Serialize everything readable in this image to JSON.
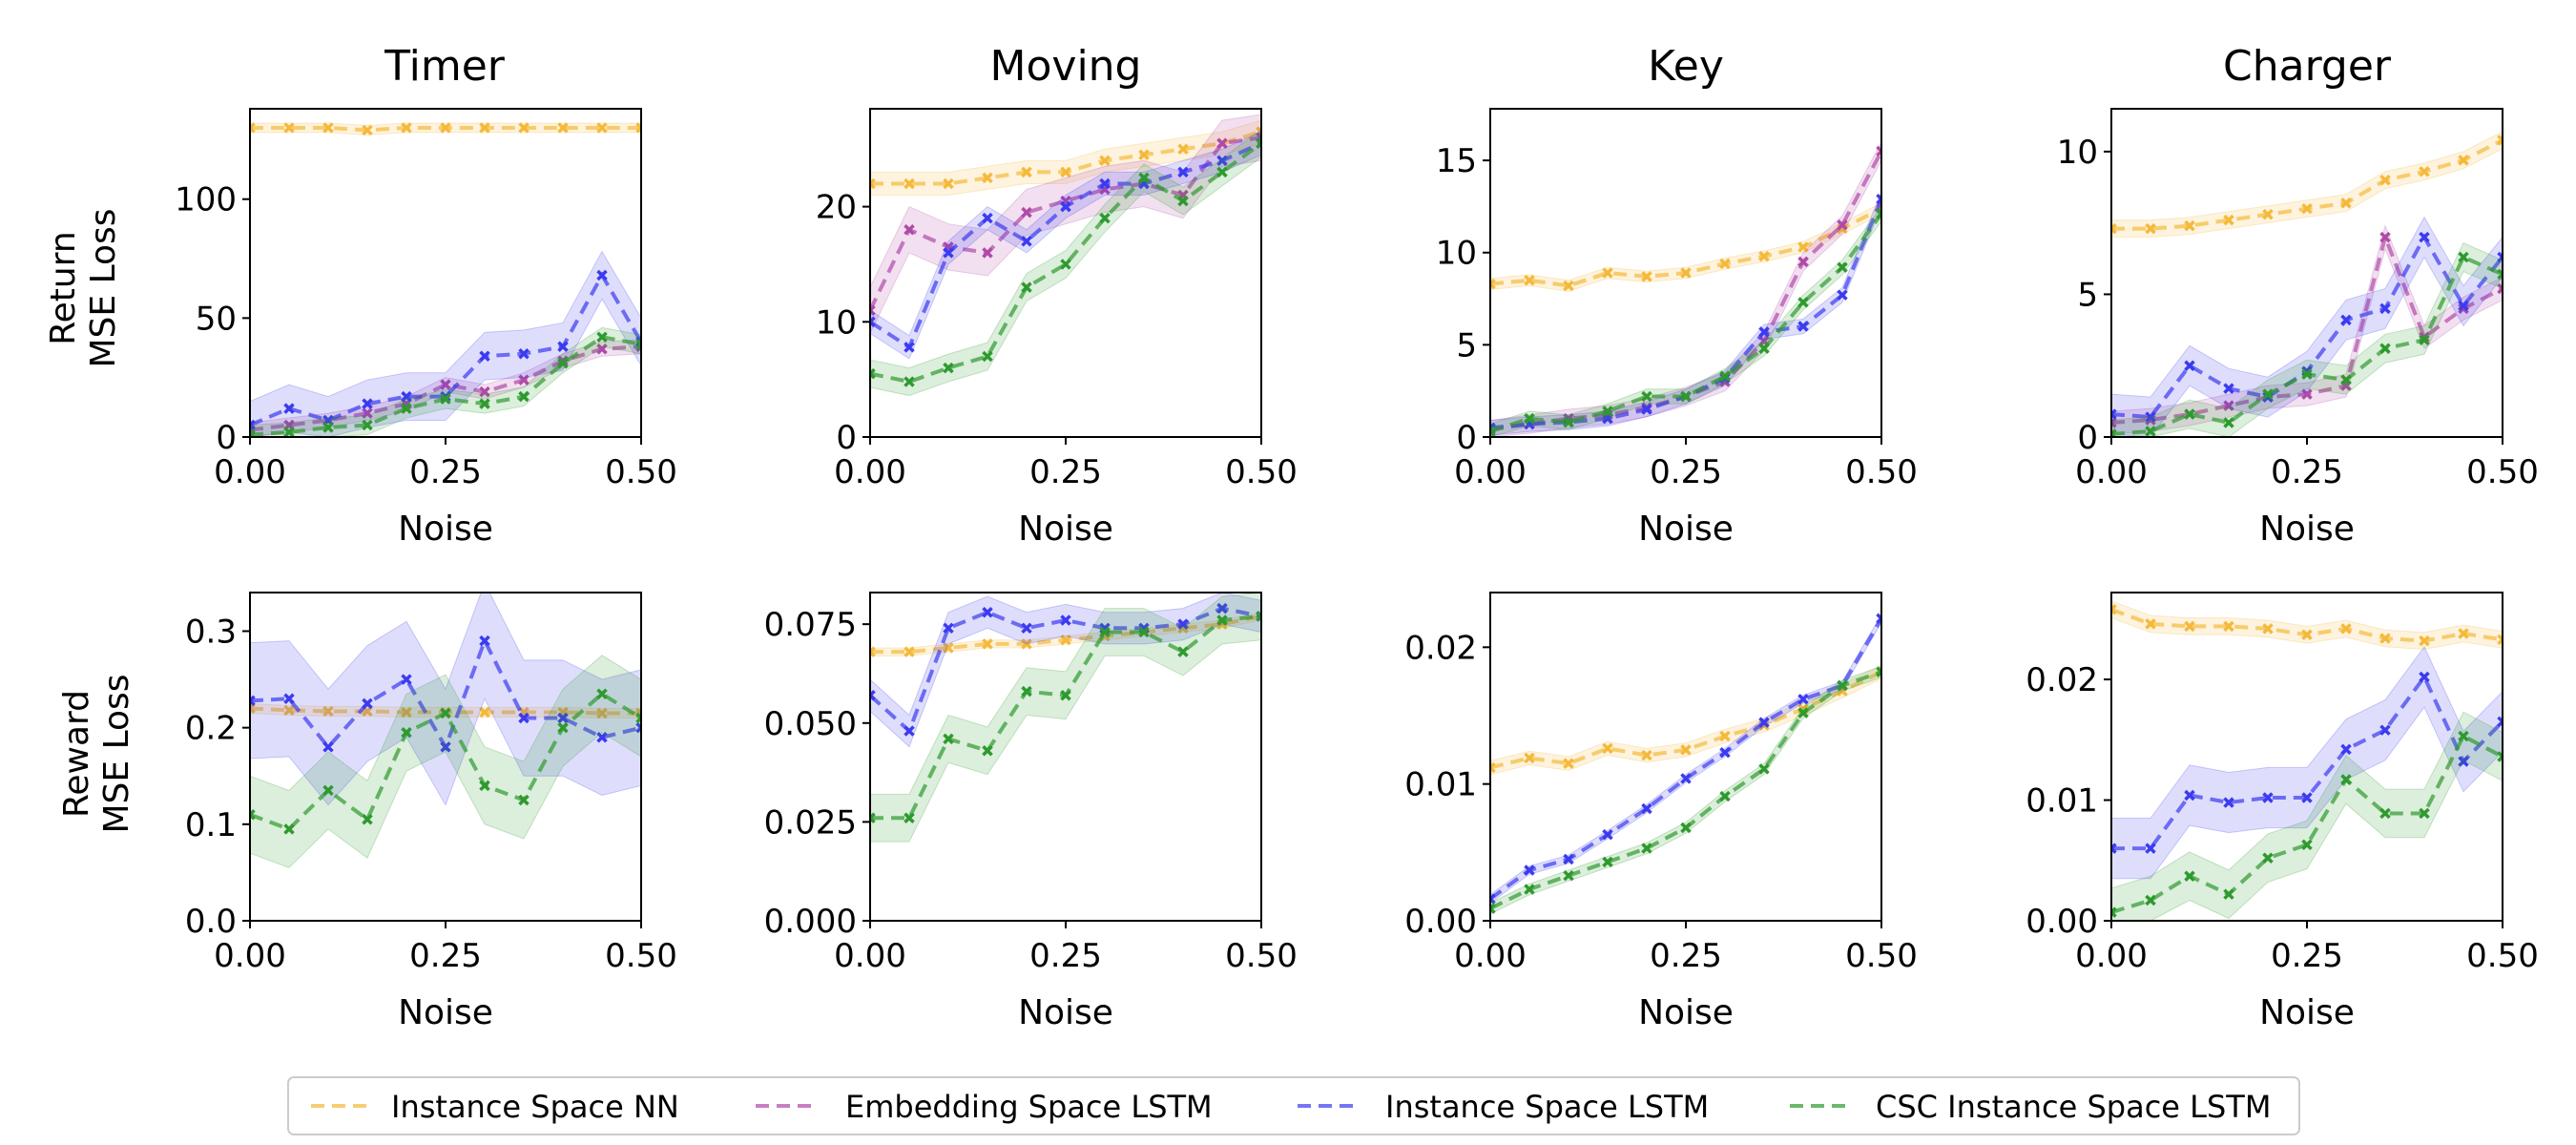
{
  "legend": {
    "placement": "bottom-center",
    "entries": [
      {
        "label": "Instance Space NN",
        "color": "#f5b93a"
      },
      {
        "label": "Embedding Space LSTM",
        "color": "#b04aa8"
      },
      {
        "label": "Instance Space LSTM",
        "color": "#3b3bf0"
      },
      {
        "label": "CSC Instance Space LSTM",
        "color": "#2e9a2e"
      }
    ]
  },
  "row_labels": [
    {
      "line1": "Return",
      "line2": "MSE Loss"
    },
    {
      "line1": "Reward",
      "line2": "MSE Loss"
    }
  ],
  "column_titles": [
    "Timer",
    "Moving",
    "Key",
    "Charger"
  ],
  "chart_data": [
    {
      "type": "line",
      "title": "Timer",
      "xlabel": "Noise",
      "ylabel": "Return MSE Loss",
      "xlim": [
        0,
        0.5
      ],
      "ylim": [
        0,
        138
      ],
      "xticks": [
        "0.00",
        "0.25",
        "0.50"
      ],
      "yticks": [
        0,
        50,
        100
      ],
      "ytick_labels": [
        "0",
        "50",
        "100"
      ],
      "x": [
        0,
        0.05,
        0.1,
        0.15,
        0.2,
        0.25,
        0.3,
        0.35,
        0.4,
        0.45,
        0.5
      ],
      "series": [
        {
          "values": [
            130,
            130,
            130,
            129,
            130,
            130,
            130,
            130,
            130,
            130,
            130
          ],
          "band": 2
        },
        {
          "values": [
            3,
            5,
            7,
            10,
            14,
            22,
            19,
            24,
            32,
            37,
            38
          ],
          "band": 3
        },
        {
          "values": [
            5,
            12,
            7,
            14,
            17,
            17,
            34,
            35,
            38,
            68,
            40
          ],
          "band": 10
        },
        {
          "values": [
            1,
            2,
            4,
            5,
            12,
            16,
            14,
            17,
            31,
            42,
            39
          ],
          "band": 4
        }
      ]
    },
    {
      "type": "line",
      "title": "Moving",
      "xlabel": "Noise",
      "ylabel": "",
      "xlim": [
        0,
        0.5
      ],
      "ylim": [
        0,
        28.5
      ],
      "xticks": [
        "0.00",
        "0.25",
        "0.50"
      ],
      "yticks": [
        0,
        10,
        20
      ],
      "ytick_labels": [
        "0",
        "10",
        "20"
      ],
      "x": [
        0,
        0.05,
        0.1,
        0.15,
        0.2,
        0.25,
        0.3,
        0.35,
        0.4,
        0.45,
        0.5
      ],
      "series": [
        {
          "values": [
            22,
            22,
            22,
            22.5,
            23,
            23,
            24,
            24.5,
            25,
            25.5,
            26.5
          ],
          "band": 1
        },
        {
          "values": [
            11,
            18,
            16.5,
            16,
            19.5,
            20.5,
            21.5,
            22,
            21,
            25.5,
            26
          ],
          "band": 2
        },
        {
          "values": [
            10,
            7.8,
            16,
            19,
            17,
            20,
            22,
            22,
            23,
            24,
            25.5
          ],
          "band": 1
        },
        {
          "values": [
            5.5,
            4.8,
            6,
            7,
            13,
            15,
            19,
            22.5,
            20.5,
            23,
            25.5
          ],
          "band": 1.2
        }
      ]
    },
    {
      "type": "line",
      "title": "Key",
      "xlabel": "Noise",
      "ylabel": "",
      "xlim": [
        0,
        0.5
      ],
      "ylim": [
        0,
        17.8
      ],
      "xticks": [
        "0.00",
        "0.25",
        "0.50"
      ],
      "yticks": [
        0,
        5,
        10,
        15
      ],
      "ytick_labels": [
        "0",
        "5",
        "10",
        "15"
      ],
      "x": [
        0,
        0.05,
        0.1,
        0.15,
        0.2,
        0.25,
        0.3,
        0.35,
        0.4,
        0.45,
        0.5
      ],
      "series": [
        {
          "values": [
            8.3,
            8.5,
            8.2,
            8.9,
            8.7,
            8.9,
            9.4,
            9.8,
            10.3,
            11.3,
            12.4
          ],
          "band": 0.3
        },
        {
          "values": [
            0.4,
            0.7,
            1.0,
            1.2,
            1.6,
            2.2,
            3.0,
            5.2,
            9.5,
            11.5,
            15.5
          ],
          "band": 0.5
        },
        {
          "values": [
            0.5,
            0.7,
            0.8,
            1.0,
            1.5,
            2.2,
            3.2,
            5.7,
            6.0,
            7.7,
            12.9
          ],
          "band": 0.4
        },
        {
          "values": [
            0.3,
            1.0,
            0.8,
            1.4,
            2.2,
            2.2,
            3.3,
            4.8,
            7.3,
            9.2,
            12.1
          ],
          "band": 0.4
        }
      ]
    },
    {
      "type": "line",
      "title": "Charger",
      "xlabel": "Noise",
      "ylabel": "",
      "xlim": [
        0,
        0.5
      ],
      "ylim": [
        0,
        11.5
      ],
      "xticks": [
        "0.00",
        "0.25",
        "0.50"
      ],
      "yticks": [
        0,
        5,
        10
      ],
      "ytick_labels": [
        "0",
        "5",
        "10"
      ],
      "x": [
        0,
        0.05,
        0.1,
        0.15,
        0.2,
        0.25,
        0.3,
        0.35,
        0.4,
        0.45,
        0.5
      ],
      "series": [
        {
          "values": [
            7.3,
            7.3,
            7.4,
            7.6,
            7.8,
            8.0,
            8.2,
            9.0,
            9.3,
            9.7,
            10.4
          ],
          "band": 0.3
        },
        {
          "values": [
            0.5,
            0.6,
            0.8,
            1.1,
            1.4,
            1.5,
            1.8,
            7.0,
            3.5,
            4.5,
            5.2
          ],
          "band": 0.4
        },
        {
          "values": [
            0.8,
            0.7,
            2.5,
            1.7,
            1.4,
            2.3,
            4.1,
            4.5,
            7.0,
            4.6,
            6.3
          ],
          "band": 0.7
        },
        {
          "values": [
            0.1,
            0.2,
            0.8,
            0.5,
            1.5,
            2.2,
            2.0,
            3.1,
            3.4,
            6.3,
            5.7
          ],
          "band": 0.5
        }
      ]
    },
    {
      "type": "line",
      "title": "",
      "xlabel": "Noise",
      "ylabel": "Reward MSE Loss",
      "xlim": [
        0,
        0.5
      ],
      "ylim": [
        0,
        0.34
      ],
      "xticks": [
        "0.00",
        "0.25",
        "0.50"
      ],
      "yticks": [
        0,
        0.1,
        0.2,
        0.3
      ],
      "ytick_labels": [
        "0.0",
        "0.1",
        "0.2",
        "0.3"
      ],
      "x": [
        0,
        0.05,
        0.1,
        0.15,
        0.2,
        0.25,
        0.3,
        0.35,
        0.4,
        0.45,
        0.5
      ],
      "series": [
        {
          "values": [
            0.22,
            0.218,
            0.217,
            0.217,
            0.216,
            0.216,
            0.216,
            0.216,
            0.216,
            0.215,
            0.215
          ],
          "band": 0.005
        },
        null,
        {
          "values": [
            0.228,
            0.23,
            0.18,
            0.225,
            0.25,
            0.18,
            0.29,
            0.21,
            0.21,
            0.19,
            0.2
          ],
          "band": 0.06
        },
        {
          "values": [
            0.11,
            0.095,
            0.135,
            0.105,
            0.195,
            0.215,
            0.14,
            0.125,
            0.2,
            0.235,
            0.21
          ],
          "band": 0.04
        }
      ]
    },
    {
      "type": "line",
      "title": "",
      "xlabel": "Noise",
      "ylabel": "",
      "xlim": [
        0,
        0.5
      ],
      "ylim": [
        0,
        0.083
      ],
      "xticks": [
        "0.00",
        "0.25",
        "0.50"
      ],
      "yticks": [
        0,
        0.025,
        0.05,
        0.075
      ],
      "ytick_labels": [
        "0.000",
        "0.025",
        "0.050",
        "0.075"
      ],
      "x": [
        0,
        0.05,
        0.1,
        0.15,
        0.2,
        0.25,
        0.3,
        0.35,
        0.4,
        0.45,
        0.5
      ],
      "series": [
        {
          "values": [
            0.068,
            0.068,
            0.069,
            0.07,
            0.07,
            0.071,
            0.072,
            0.073,
            0.074,
            0.075,
            0.077
          ],
          "band": 0.001
        },
        null,
        {
          "values": [
            0.057,
            0.048,
            0.074,
            0.078,
            0.074,
            0.076,
            0.074,
            0.074,
            0.075,
            0.079,
            0.077
          ],
          "band": 0.004
        },
        {
          "values": [
            0.026,
            0.026,
            0.046,
            0.043,
            0.058,
            0.057,
            0.073,
            0.073,
            0.068,
            0.076,
            0.077
          ],
          "band": 0.006
        }
      ]
    },
    {
      "type": "line",
      "title": "",
      "xlabel": "Noise",
      "ylabel": "",
      "xlim": [
        0,
        0.5
      ],
      "ylim": [
        0,
        0.024
      ],
      "xticks": [
        "0.00",
        "0.25",
        "0.50"
      ],
      "yticks": [
        0,
        0.01,
        0.02
      ],
      "ytick_labels": [
        "0.00",
        "0.01",
        "0.02"
      ],
      "x": [
        0,
        0.05,
        0.1,
        0.15,
        0.2,
        0.25,
        0.3,
        0.35,
        0.4,
        0.45,
        0.5
      ],
      "series": [
        {
          "values": [
            0.0112,
            0.0119,
            0.0115,
            0.0126,
            0.0121,
            0.0125,
            0.0135,
            0.0143,
            0.0155,
            0.0168,
            0.0182
          ],
          "band": 0.0005
        },
        null,
        {
          "values": [
            0.0016,
            0.0037,
            0.0045,
            0.0063,
            0.0082,
            0.0104,
            0.0123,
            0.0145,
            0.0162,
            0.0172,
            0.0221
          ],
          "band": 0.0003
        },
        {
          "values": [
            0.0009,
            0.0023,
            0.0033,
            0.0043,
            0.0053,
            0.0068,
            0.0091,
            0.0111,
            0.0152,
            0.0172,
            0.0182
          ],
          "band": 0.0004
        }
      ]
    },
    {
      "type": "line",
      "title": "",
      "xlabel": "Noise",
      "ylabel": "",
      "xlim": [
        0,
        0.5
      ],
      "ylim": [
        0,
        0.0272
      ],
      "xticks": [
        "0.00",
        "0.25",
        "0.50"
      ],
      "yticks": [
        0,
        0.01,
        0.02
      ],
      "ytick_labels": [
        "0.00",
        "0.01",
        "0.02"
      ],
      "x": [
        0,
        0.05,
        0.1,
        0.15,
        0.2,
        0.25,
        0.3,
        0.35,
        0.4,
        0.45,
        0.5
      ],
      "series": [
        {
          "values": [
            0.0258,
            0.0246,
            0.0244,
            0.0244,
            0.0242,
            0.0237,
            0.0242,
            0.0234,
            0.0232,
            0.0238,
            0.0233
          ],
          "band": 0.0007
        },
        null,
        {
          "values": [
            0.006,
            0.006,
            0.0104,
            0.0098,
            0.0102,
            0.0102,
            0.0142,
            0.0158,
            0.0202,
            0.0132,
            0.0165
          ],
          "band": 0.0025
        },
        {
          "values": [
            0.0007,
            0.0017,
            0.0037,
            0.0022,
            0.0052,
            0.0063,
            0.0117,
            0.0089,
            0.0089,
            0.0153,
            0.0136
          ],
          "band": 0.002
        }
      ]
    }
  ]
}
